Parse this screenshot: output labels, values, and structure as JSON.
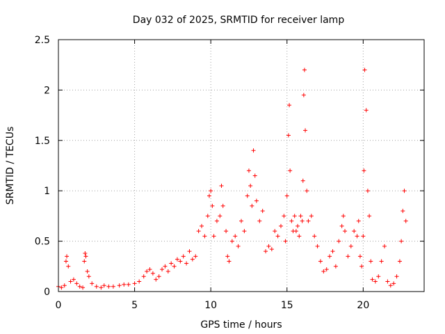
{
  "chart_data": {
    "type": "scatter",
    "title": "Day 032 of 2025, SRMTID for receiver lamp",
    "xlabel": "GPS time / hours",
    "ylabel": "SRMTID / TECUs",
    "xlim": [
      0,
      24
    ],
    "ylim": [
      0,
      2.5
    ],
    "xticks": [
      0,
      5,
      10,
      15,
      20
    ],
    "xtick_labels": [
      "0",
      "5",
      "10",
      "15",
      "20"
    ],
    "yticks": [
      0,
      0.5,
      1,
      1.5,
      2,
      2.5
    ],
    "ytick_labels": [
      "0",
      "0.5",
      "1",
      "1.5",
      "2",
      "2.5"
    ],
    "grid": true,
    "marker": "+",
    "color": "#ff0000",
    "series": [
      {
        "name": "SRMTID",
        "x": [
          0.0,
          0.2,
          0.4,
          0.5,
          0.55,
          0.65,
          0.8,
          1.0,
          1.2,
          1.4,
          1.6,
          1.7,
          1.75,
          1.8,
          1.9,
          2.0,
          2.2,
          2.5,
          2.8,
          3.0,
          3.3,
          3.6,
          4.0,
          4.3,
          4.6,
          5.0,
          5.3,
          5.6,
          5.8,
          6.0,
          6.2,
          6.4,
          6.6,
          6.8,
          7.0,
          7.2,
          7.4,
          7.6,
          7.8,
          8.0,
          8.2,
          8.4,
          8.6,
          8.8,
          9.0,
          9.2,
          9.4,
          9.6,
          9.8,
          9.9,
          10.0,
          10.1,
          10.2,
          10.4,
          10.6,
          10.7,
          10.8,
          11.0,
          11.1,
          11.2,
          11.4,
          11.6,
          11.8,
          12.0,
          12.2,
          12.4,
          12.5,
          12.6,
          12.7,
          12.8,
          12.9,
          13.0,
          13.2,
          13.4,
          13.6,
          13.8,
          14.0,
          14.2,
          14.4,
          14.6,
          14.8,
          14.9,
          15.0,
          15.1,
          15.15,
          15.2,
          15.3,
          15.4,
          15.5,
          15.6,
          15.7,
          15.8,
          15.9,
          16.0,
          16.05,
          16.1,
          16.15,
          16.2,
          16.3,
          16.4,
          16.6,
          16.8,
          17.0,
          17.2,
          17.4,
          17.6,
          17.8,
          18.0,
          18.2,
          18.4,
          18.6,
          18.7,
          18.8,
          19.0,
          19.2,
          19.4,
          19.6,
          19.7,
          19.8,
          19.9,
          20.0,
          20.05,
          20.1,
          20.2,
          20.3,
          20.4,
          20.5,
          20.6,
          20.8,
          21.0,
          21.2,
          21.4,
          21.6,
          21.8,
          22.0,
          22.2,
          22.4,
          22.5,
          22.6,
          22.7,
          22.8
        ],
        "values": [
          0.05,
          0.04,
          0.06,
          0.3,
          0.35,
          0.25,
          0.1,
          0.12,
          0.08,
          0.05,
          0.04,
          0.3,
          0.38,
          0.35,
          0.2,
          0.15,
          0.08,
          0.05,
          0.04,
          0.06,
          0.05,
          0.05,
          0.06,
          0.07,
          0.07,
          0.08,
          0.1,
          0.15,
          0.2,
          0.22,
          0.18,
          0.12,
          0.15,
          0.22,
          0.25,
          0.2,
          0.28,
          0.25,
          0.32,
          0.3,
          0.35,
          0.28,
          0.4,
          0.32,
          0.35,
          0.6,
          0.65,
          0.55,
          0.75,
          0.95,
          1.0,
          0.85,
          0.55,
          0.7,
          0.75,
          1.05,
          0.85,
          0.6,
          0.35,
          0.3,
          0.5,
          0.55,
          0.45,
          0.7,
          0.6,
          0.95,
          1.2,
          1.05,
          0.85,
          1.4,
          1.15,
          0.9,
          0.7,
          0.8,
          0.4,
          0.45,
          0.42,
          0.6,
          0.55,
          0.65,
          0.75,
          0.5,
          0.95,
          1.55,
          1.85,
          1.2,
          0.7,
          0.6,
          0.75,
          0.6,
          0.65,
          0.55,
          0.75,
          0.7,
          1.1,
          1.95,
          2.2,
          1.6,
          1.0,
          0.7,
          0.75,
          0.55,
          0.45,
          0.3,
          0.2,
          0.22,
          0.35,
          0.4,
          0.25,
          0.5,
          0.65,
          0.75,
          0.6,
          0.35,
          0.45,
          0.6,
          0.55,
          0.7,
          0.35,
          0.25,
          0.55,
          1.2,
          2.2,
          1.8,
          1.0,
          0.75,
          0.3,
          0.12,
          0.1,
          0.15,
          0.3,
          0.45,
          0.1,
          0.06,
          0.08,
          0.15,
          0.3,
          0.5,
          0.8,
          1.0,
          0.7
        ]
      }
    ]
  }
}
